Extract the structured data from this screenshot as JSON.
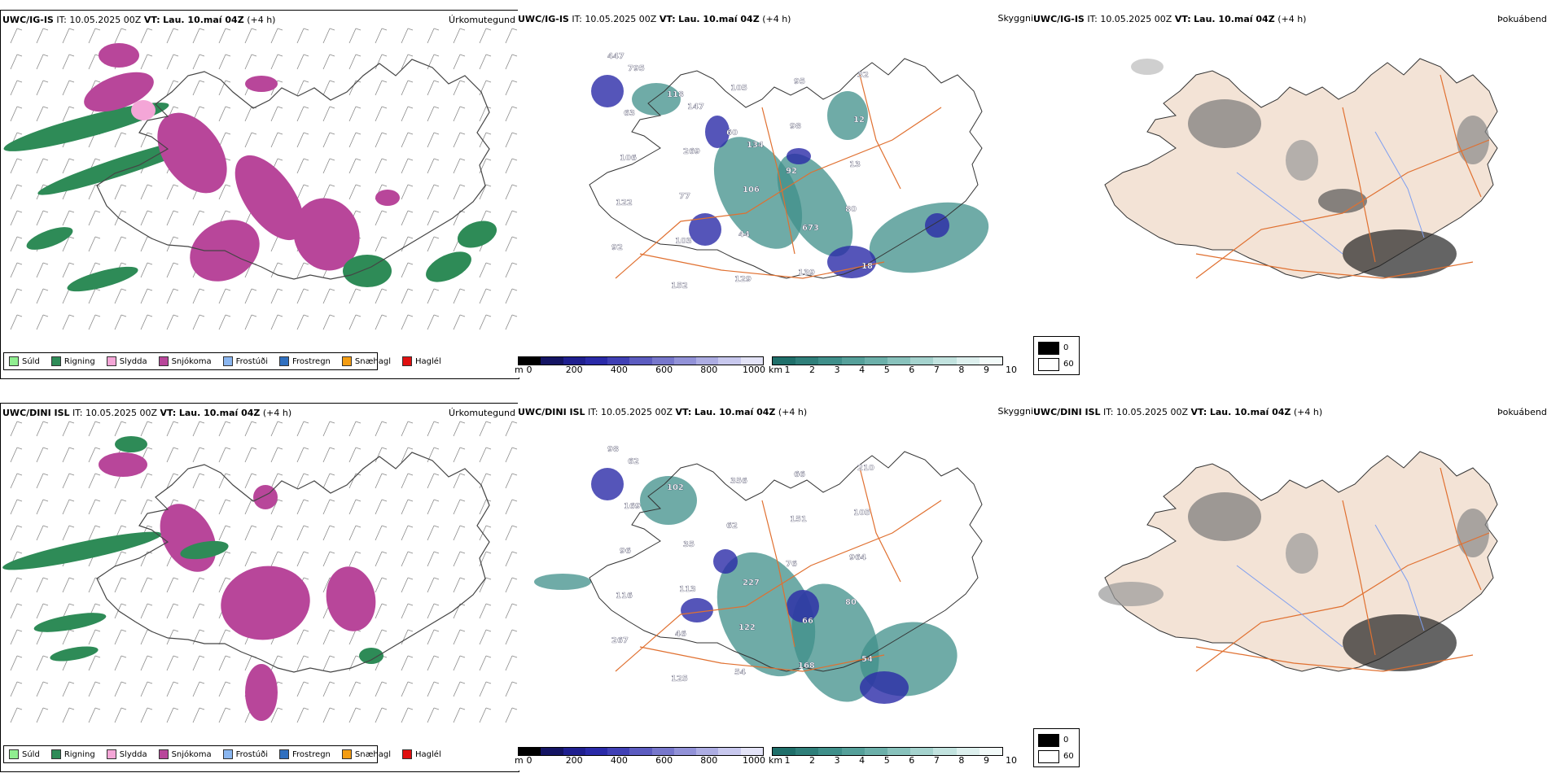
{
  "rows": [
    {
      "precip_title_model": "UWC/IG-IS",
      "cloud_title_model": "UWC/IG-IS",
      "fog_title_model": "UWC/IG-IS",
      "it_text": "IT: 10.05.2025 00Z",
      "vt_label": "VT:",
      "vt_value": "Lau. 10.maí 04Z",
      "lead": "(+4 h)",
      "cloud_values": [
        "447",
        "118",
        "60",
        "92",
        "80",
        "92",
        "152",
        "105",
        "98",
        "13",
        "122",
        "103",
        "129",
        "95",
        "12",
        "106",
        "77",
        "44",
        "139",
        "32",
        "63",
        "269",
        "106",
        "673",
        "18",
        "795",
        "147",
        "134"
      ]
    },
    {
      "precip_title_model": "UWC/DINI ISL",
      "cloud_title_model": "UWC/DINI ISL",
      "fog_title_model": "UWC/DINI ISL",
      "it_text": "IT: 10.05.2025 00Z",
      "vt_label": "VT:",
      "vt_value": "Lau. 10.maí 04Z",
      "lead": "(+4 h)",
      "cloud_values": [
        "98",
        "102",
        "62",
        "76",
        "80",
        "267",
        "125",
        "356",
        "151",
        "964",
        "116",
        "46",
        "54",
        "66",
        "105",
        "96",
        "113",
        "122",
        "168",
        "210",
        "169",
        "35",
        "227",
        "66",
        "54",
        "62"
      ]
    }
  ],
  "labels": {
    "precip_type": "Úrkomutegund",
    "cloud": "Skyggni",
    "fog": "Þokuábendi"
  },
  "precip_legend": [
    {
      "label": "Súld",
      "color": "#90ee90"
    },
    {
      "label": "Rigning",
      "color": "#2e8b57"
    },
    {
      "label": "Slydda",
      "color": "#f4a6d7"
    },
    {
      "label": "Snjókoma",
      "color": "#b8469a"
    },
    {
      "label": "Frostúði",
      "color": "#8ab6f0"
    },
    {
      "label": "Frostregn",
      "color": "#2f6fbf"
    },
    {
      "label": "Snæhagl",
      "color": "#f39c12"
    },
    {
      "label": "Haglél",
      "color": "#e01010"
    }
  ],
  "height_bar": {
    "unit": "m",
    "ticks": [
      "0",
      "200",
      "400",
      "600",
      "800",
      "1000"
    ],
    "colors": [
      "#000000",
      "#141463",
      "#1f1f8f",
      "#2a2aa8",
      "#4040b5",
      "#5c5cc0",
      "#7777cc",
      "#9292d8",
      "#adade3",
      "#c8c8ee",
      "#e3e3f7"
    ]
  },
  "cloud_bar": {
    "unit": "km",
    "ticks": [
      "1",
      "2",
      "3",
      "4",
      "5",
      "6",
      "7",
      "8",
      "9",
      "10"
    ],
    "colors": [
      "#1f6f6a",
      "#2f7f7a",
      "#3f8f8a",
      "#55a09a",
      "#6cb0aa",
      "#88c2bc",
      "#a5d3ce",
      "#c2e3df",
      "#ddf0ee",
      "#f2faf9"
    ]
  },
  "fog_legend": {
    "dark": "0",
    "light": "60"
  },
  "colors": {
    "snow": "#b8469a",
    "rain": "#2e8b57",
    "sleet": "#f4a6d7",
    "cloud_teal": "#3f8f8a",
    "cloud_blue": "#2a2aa8",
    "road": "#e07030",
    "land_fog": "#f3e3d6",
    "river": "#7f9ff0"
  }
}
